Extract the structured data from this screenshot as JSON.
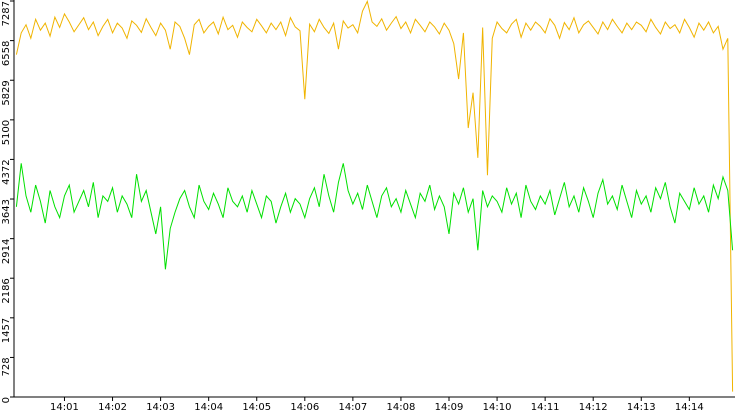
{
  "chart_data": {
    "type": "line",
    "categories": [
      null,
      null,
      null,
      null,
      null,
      null,
      null,
      null,
      null,
      null,
      "14:01",
      null,
      null,
      null,
      null,
      null,
      null,
      null,
      null,
      null,
      "14:02",
      null,
      null,
      null,
      null,
      null,
      null,
      null,
      null,
      null,
      "14:03",
      null,
      null,
      null,
      null,
      null,
      null,
      null,
      null,
      null,
      "14:04",
      null,
      null,
      null,
      null,
      null,
      null,
      null,
      null,
      null,
      "14:05",
      null,
      null,
      null,
      null,
      null,
      null,
      null,
      null,
      null,
      "14:06",
      null,
      null,
      null,
      null,
      null,
      null,
      null,
      null,
      null,
      "14:07",
      null,
      null,
      null,
      null,
      null,
      null,
      null,
      null,
      null,
      "14:08",
      null,
      null,
      null,
      null,
      null,
      null,
      null,
      null,
      null,
      "14:09",
      null,
      null,
      null,
      null,
      null,
      null,
      null,
      null,
      null,
      "14:10",
      null,
      null,
      null,
      null,
      null,
      null,
      null,
      null,
      null,
      "14:11",
      null,
      null,
      null,
      null,
      null,
      null,
      null,
      null,
      null,
      "14:12",
      null,
      null,
      null,
      null,
      null,
      null,
      null,
      null,
      null,
      "14:13",
      null,
      null,
      null,
      null,
      null,
      null,
      null,
      null,
      null,
      "14:14",
      null,
      null,
      null,
      null,
      null,
      null,
      null,
      null,
      null
    ],
    "series": [
      {
        "color": "#f0b400",
        "values": [
          6300,
          6700,
          6850,
          6600,
          6950,
          6750,
          6880,
          6640,
          6990,
          6800,
          7050,
          6900,
          6720,
          6850,
          6980,
          6760,
          6900,
          6650,
          6820,
          6950,
          6700,
          6880,
          6790,
          6600,
          6920,
          6840,
          6710,
          6960,
          6800,
          6650,
          6880,
          6750,
          6400,
          6900,
          6820,
          6600,
          6300,
          6850,
          6950,
          6700,
          6820,
          6900,
          6680,
          6990,
          6760,
          6840,
          6620,
          6900,
          6800,
          6720,
          6950,
          6830,
          6700,
          6880,
          6760,
          6900,
          6650,
          6980,
          6810,
          6740,
          5480,
          6860,
          6720,
          6950,
          6800,
          6690,
          6880,
          6400,
          6920,
          6790,
          6850,
          6700,
          7100,
          7280,
          6900,
          6820,
          6960,
          6750,
          6880,
          7000,
          6780,
          6900,
          6700,
          6950,
          6840,
          6720,
          6900,
          6810,
          6680,
          6880,
          6750,
          6500,
          5850,
          6700,
          4950,
          5600,
          4400,
          6800,
          4080,
          6600,
          6900,
          6780,
          6700,
          6860,
          6950,
          6620,
          6880,
          6750,
          6900,
          6820,
          6700,
          6960,
          6840,
          6600,
          6890,
          6760,
          6980,
          6700,
          6850,
          6920,
          6800,
          6680,
          6900,
          6760,
          6950,
          6820,
          6700,
          6880,
          6760,
          6900,
          6840,
          6720,
          6950,
          6800,
          6680,
          6900,
          6780,
          6850,
          6700,
          6950,
          6800,
          6620,
          6880,
          6750,
          6900,
          6700,
          6820,
          6400,
          6600,
          100
        ]
      },
      {
        "color": "#00e000",
        "values": [
          3500,
          4300,
          3700,
          3400,
          3900,
          3600,
          3200,
          3800,
          3500,
          3300,
          3700,
          3900,
          3400,
          3600,
          3800,
          3500,
          3950,
          3300,
          3700,
          3600,
          3850,
          3400,
          3700,
          3550,
          3300,
          4100,
          3600,
          3800,
          3400,
          3000,
          3500,
          2350,
          3100,
          3400,
          3650,
          3800,
          3500,
          3300,
          3900,
          3600,
          3450,
          3750,
          3550,
          3300,
          3850,
          3600,
          3500,
          3700,
          3400,
          3800,
          3550,
          3300,
          3700,
          3600,
          3200,
          3500,
          3750,
          3400,
          3650,
          3550,
          3300,
          3650,
          3850,
          3500,
          4100,
          3700,
          3400,
          3950,
          4300,
          3800,
          3550,
          3750,
          3450,
          3900,
          3600,
          3300,
          3700,
          3850,
          3500,
          3650,
          3400,
          3800,
          3550,
          3300,
          3750,
          3600,
          3900,
          3450,
          3700,
          3500,
          3000,
          3750,
          3550,
          3850,
          3400,
          3650,
          2700,
          3800,
          3500,
          3700,
          3600,
          3400,
          3850,
          3550,
          3750,
          3300,
          3900,
          3600,
          3450,
          3700,
          3550,
          3800,
          3350,
          3650,
          3950,
          3500,
          3700,
          3400,
          3850,
          3600,
          3300,
          3750,
          4000,
          3550,
          3700,
          3450,
          3900,
          3600,
          3300,
          3800,
          3550,
          3700,
          3400,
          3850,
          3650,
          3950,
          3500,
          3200,
          3750,
          3600,
          3450,
          3850,
          3550,
          3700,
          3400,
          3900,
          3650,
          4050,
          3800,
          2700
        ]
      }
    ],
    "ylim": [
      0,
      7287
    ],
    "yticks": [
      0,
      728,
      1457,
      2186,
      2914,
      3643,
      4372,
      5100,
      5829,
      6558,
      7287
    ]
  }
}
